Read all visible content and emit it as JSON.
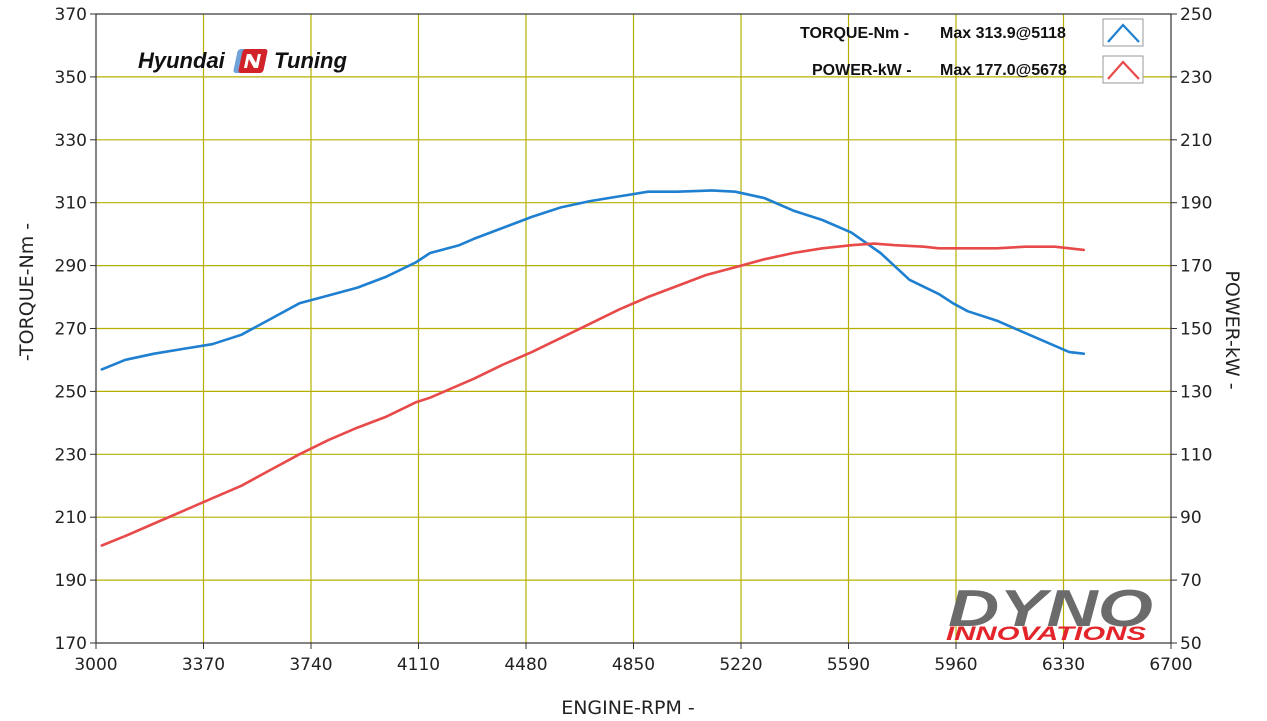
{
  "chart_data": {
    "type": "line",
    "xlabel": "ENGINE-RPM -",
    "ylabel_left": "-TORQUE-Nm -",
    "ylabel_right": "POWER-kW -",
    "xlim": [
      3000,
      6700
    ],
    "ylim_left": [
      170,
      370
    ],
    "ylim_right": [
      50,
      250
    ],
    "x_ticks": [
      3000,
      3370,
      3740,
      4110,
      4480,
      4850,
      5220,
      5590,
      5960,
      6330,
      6700
    ],
    "y_left_ticks": [
      170,
      190,
      210,
      230,
      250,
      270,
      290,
      310,
      330,
      350,
      370
    ],
    "y_right_ticks": [
      50,
      70,
      90,
      110,
      130,
      150,
      170,
      190,
      210,
      230,
      250
    ],
    "grid": true,
    "legend_position": "top-right",
    "series": [
      {
        "name": "TORQUE-Nm -",
        "legend_value": "Max 313.9@5118",
        "axis": "left",
        "color": "#1f7fd0",
        "x": [
          3020,
          3100,
          3200,
          3300,
          3400,
          3500,
          3600,
          3700,
          3800,
          3900,
          4000,
          4100,
          4150,
          4250,
          4300,
          4400,
          4500,
          4600,
          4700,
          4800,
          4900,
          5000,
          5100,
          5118,
          5200,
          5300,
          5400,
          5500,
          5600,
          5700,
          5800,
          5900,
          5950,
          6000,
          6100,
          6200,
          6300,
          6350,
          6400
        ],
        "y": [
          257,
          260,
          262,
          263.5,
          265,
          268,
          273,
          278,
          280.5,
          283,
          286.5,
          291,
          294,
          296.5,
          298.5,
          302,
          305.5,
          308.5,
          310.5,
          312,
          313.5,
          313.5,
          313.8,
          313.9,
          313.5,
          311.5,
          307.5,
          304.5,
          300.5,
          294,
          285.5,
          281,
          278,
          275.5,
          272.5,
          268.5,
          264.5,
          262.5,
          262
        ]
      },
      {
        "name": "POWER-kW -",
        "legend_value": "Max 177.0@5678",
        "axis": "right",
        "color": "#e84a4a",
        "x": [
          3020,
          3100,
          3200,
          3300,
          3400,
          3500,
          3600,
          3700,
          3800,
          3900,
          4000,
          4100,
          4150,
          4250,
          4300,
          4400,
          4500,
          4600,
          4700,
          4800,
          4900,
          5000,
          5100,
          5200,
          5300,
          5400,
          5500,
          5600,
          5678,
          5750,
          5850,
          5900,
          5950,
          6000,
          6100,
          6200,
          6300,
          6350,
          6400
        ],
        "y": [
          81,
          84,
          88,
          92,
          96,
          100,
          105,
          110,
          114.5,
          118.5,
          122,
          126.5,
          128,
          132,
          134,
          138.5,
          142.5,
          147,
          151.5,
          156,
          160,
          163.5,
          167,
          169.5,
          172,
          174,
          175.5,
          176.5,
          177,
          176.5,
          176,
          175.5,
          175.5,
          175.5,
          175.5,
          176,
          176,
          175.5,
          175
        ]
      }
    ]
  },
  "logos": {
    "hyundai_left": "Hyundai",
    "hyundai_n": "N",
    "hyundai_right": "Tuning",
    "dyno": "DYNO",
    "innovations": "INNOVATIONS"
  },
  "colors": {
    "grid": "#b5b000",
    "axis": "#333333",
    "hyundai_n_dark": "#d2232a",
    "hyundai_n_light": "#6fa3d8",
    "dyno_grey": "#6b6b6b",
    "innovations_red": "#e3242b"
  }
}
